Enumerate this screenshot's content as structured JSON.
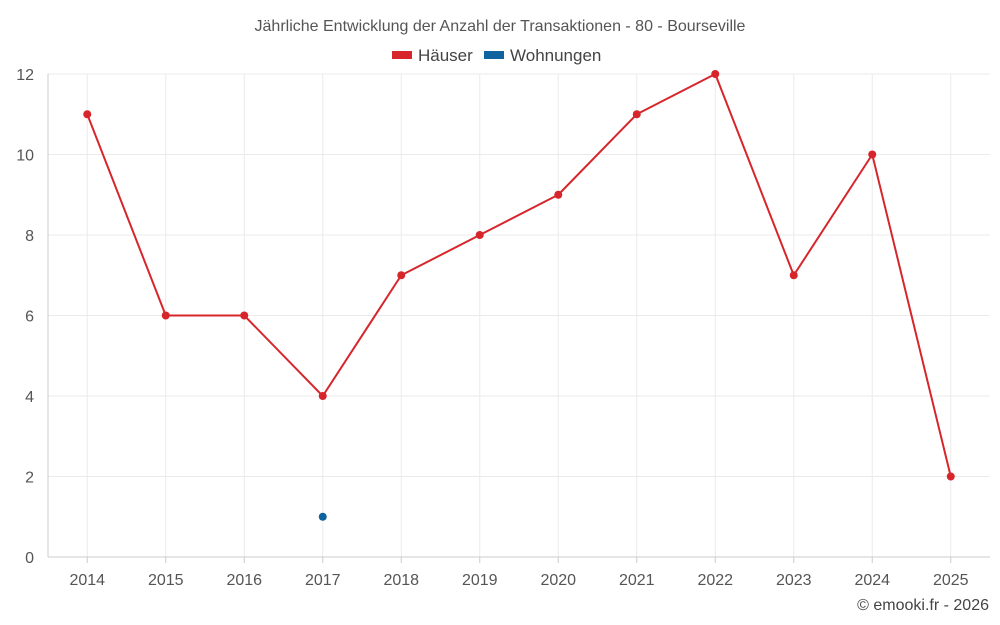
{
  "chart_data": {
    "type": "line",
    "title": "Jährliche Entwicklung der Anzahl der Transaktionen - 80 - Bourseville",
    "categories": [
      "2014",
      "2015",
      "2016",
      "2017",
      "2018",
      "2019",
      "2020",
      "2021",
      "2022",
      "2023",
      "2024",
      "2025"
    ],
    "series": [
      {
        "name": "Häuser",
        "color": "#d7262b",
        "values": [
          11,
          6,
          6,
          4,
          7,
          8,
          9,
          11,
          12,
          7,
          10,
          2
        ]
      },
      {
        "name": "Wohnungen",
        "color": "#0f64a0",
        "values": [
          null,
          null,
          null,
          1,
          null,
          null,
          null,
          null,
          null,
          null,
          null,
          null
        ]
      }
    ],
    "ylim": [
      0,
      12
    ],
    "yticks": [
      0,
      2,
      4,
      6,
      8,
      10,
      12
    ],
    "xlabel": "",
    "ylabel": "",
    "grid": true,
    "legend_position": "top-center"
  },
  "credit": "© emooki.fr - 2026"
}
